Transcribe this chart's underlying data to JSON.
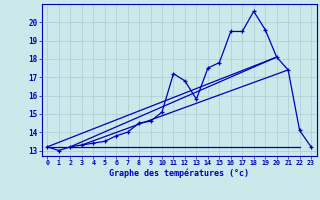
{
  "xlabel": "Graphe des températures (°c)",
  "bg_color": "#cce8ea",
  "grid_color": "#aaccd0",
  "line_color": "#0000bb",
  "hours": [
    0,
    1,
    2,
    3,
    4,
    5,
    6,
    7,
    8,
    9,
    10,
    11,
    12,
    13,
    14,
    15,
    16,
    17,
    18,
    19,
    20,
    21,
    22,
    23
  ],
  "temp_main": [
    13.2,
    13.0,
    13.2,
    13.3,
    13.4,
    13.5,
    13.8,
    14.0,
    14.5,
    14.6,
    15.1,
    17.2,
    16.8,
    15.8,
    17.5,
    17.8,
    19.5,
    19.5,
    20.6,
    19.6,
    18.1,
    17.4,
    14.1,
    13.2
  ],
  "ylim": [
    12.7,
    21.0
  ],
  "xlim": [
    -0.5,
    23.5
  ],
  "yticks": [
    13,
    14,
    15,
    16,
    17,
    18,
    19,
    20
  ],
  "xtick_labels": [
    "0",
    "1",
    "2",
    "3",
    "4",
    "5",
    "6",
    "7",
    "8",
    "9",
    "10",
    "11",
    "12",
    "13",
    "14",
    "15",
    "16",
    "17",
    "18",
    "19",
    "20",
    "21",
    "22",
    "23"
  ],
  "flat_line": {
    "x": [
      0,
      22
    ],
    "y": [
      13.2,
      13.2
    ]
  },
  "diag_line1": {
    "x": [
      0,
      20
    ],
    "y": [
      13.2,
      18.1
    ]
  },
  "diag_line2": {
    "x": [
      2,
      20
    ],
    "y": [
      13.2,
      18.1
    ]
  },
  "diag_line3": {
    "x": [
      3,
      21
    ],
    "y": [
      13.3,
      17.4
    ]
  }
}
